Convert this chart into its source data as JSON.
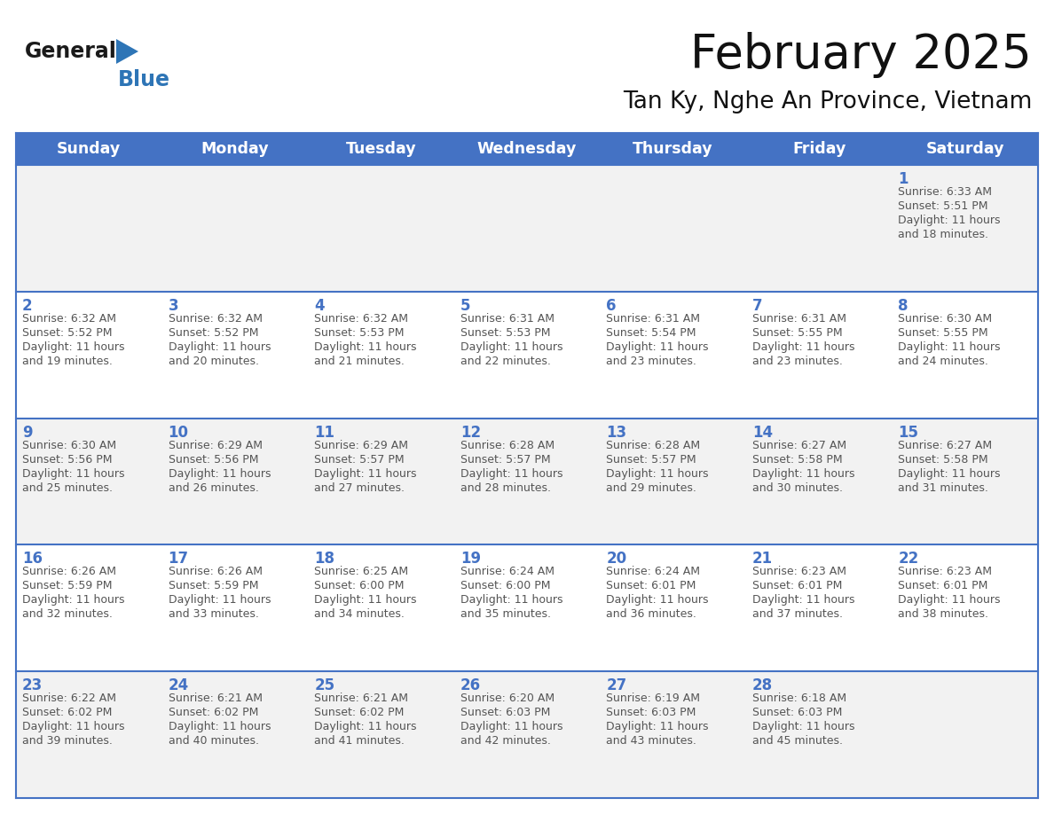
{
  "title": "February 2025",
  "subtitle": "Tan Ky, Nghe An Province, Vietnam",
  "header_bg_color": "#4472C4",
  "header_text_color": "#FFFFFF",
  "day_names": [
    "Sunday",
    "Monday",
    "Tuesday",
    "Wednesday",
    "Thursday",
    "Friday",
    "Saturday"
  ],
  "odd_row_bg": "#F2F2F2",
  "even_row_bg": "#FFFFFF",
  "cell_border_color": "#4472C4",
  "day_number_color": "#4472C4",
  "info_text_color": "#555555",
  "calendar_data": [
    [
      {
        "day": "",
        "info": ""
      },
      {
        "day": "",
        "info": ""
      },
      {
        "day": "",
        "info": ""
      },
      {
        "day": "",
        "info": ""
      },
      {
        "day": "",
        "info": ""
      },
      {
        "day": "",
        "info": ""
      },
      {
        "day": "1",
        "info": "Sunrise: 6:33 AM\nSunset: 5:51 PM\nDaylight: 11 hours\nand 18 minutes."
      }
    ],
    [
      {
        "day": "2",
        "info": "Sunrise: 6:32 AM\nSunset: 5:52 PM\nDaylight: 11 hours\nand 19 minutes."
      },
      {
        "day": "3",
        "info": "Sunrise: 6:32 AM\nSunset: 5:52 PM\nDaylight: 11 hours\nand 20 minutes."
      },
      {
        "day": "4",
        "info": "Sunrise: 6:32 AM\nSunset: 5:53 PM\nDaylight: 11 hours\nand 21 minutes."
      },
      {
        "day": "5",
        "info": "Sunrise: 6:31 AM\nSunset: 5:53 PM\nDaylight: 11 hours\nand 22 minutes."
      },
      {
        "day": "6",
        "info": "Sunrise: 6:31 AM\nSunset: 5:54 PM\nDaylight: 11 hours\nand 23 minutes."
      },
      {
        "day": "7",
        "info": "Sunrise: 6:31 AM\nSunset: 5:55 PM\nDaylight: 11 hours\nand 23 minutes."
      },
      {
        "day": "8",
        "info": "Sunrise: 6:30 AM\nSunset: 5:55 PM\nDaylight: 11 hours\nand 24 minutes."
      }
    ],
    [
      {
        "day": "9",
        "info": "Sunrise: 6:30 AM\nSunset: 5:56 PM\nDaylight: 11 hours\nand 25 minutes."
      },
      {
        "day": "10",
        "info": "Sunrise: 6:29 AM\nSunset: 5:56 PM\nDaylight: 11 hours\nand 26 minutes."
      },
      {
        "day": "11",
        "info": "Sunrise: 6:29 AM\nSunset: 5:57 PM\nDaylight: 11 hours\nand 27 minutes."
      },
      {
        "day": "12",
        "info": "Sunrise: 6:28 AM\nSunset: 5:57 PM\nDaylight: 11 hours\nand 28 minutes."
      },
      {
        "day": "13",
        "info": "Sunrise: 6:28 AM\nSunset: 5:57 PM\nDaylight: 11 hours\nand 29 minutes."
      },
      {
        "day": "14",
        "info": "Sunrise: 6:27 AM\nSunset: 5:58 PM\nDaylight: 11 hours\nand 30 minutes."
      },
      {
        "day": "15",
        "info": "Sunrise: 6:27 AM\nSunset: 5:58 PM\nDaylight: 11 hours\nand 31 minutes."
      }
    ],
    [
      {
        "day": "16",
        "info": "Sunrise: 6:26 AM\nSunset: 5:59 PM\nDaylight: 11 hours\nand 32 minutes."
      },
      {
        "day": "17",
        "info": "Sunrise: 6:26 AM\nSunset: 5:59 PM\nDaylight: 11 hours\nand 33 minutes."
      },
      {
        "day": "18",
        "info": "Sunrise: 6:25 AM\nSunset: 6:00 PM\nDaylight: 11 hours\nand 34 minutes."
      },
      {
        "day": "19",
        "info": "Sunrise: 6:24 AM\nSunset: 6:00 PM\nDaylight: 11 hours\nand 35 minutes."
      },
      {
        "day": "20",
        "info": "Sunrise: 6:24 AM\nSunset: 6:01 PM\nDaylight: 11 hours\nand 36 minutes."
      },
      {
        "day": "21",
        "info": "Sunrise: 6:23 AM\nSunset: 6:01 PM\nDaylight: 11 hours\nand 37 minutes."
      },
      {
        "day": "22",
        "info": "Sunrise: 6:23 AM\nSunset: 6:01 PM\nDaylight: 11 hours\nand 38 minutes."
      }
    ],
    [
      {
        "day": "23",
        "info": "Sunrise: 6:22 AM\nSunset: 6:02 PM\nDaylight: 11 hours\nand 39 minutes."
      },
      {
        "day": "24",
        "info": "Sunrise: 6:21 AM\nSunset: 6:02 PM\nDaylight: 11 hours\nand 40 minutes."
      },
      {
        "day": "25",
        "info": "Sunrise: 6:21 AM\nSunset: 6:02 PM\nDaylight: 11 hours\nand 41 minutes."
      },
      {
        "day": "26",
        "info": "Sunrise: 6:20 AM\nSunset: 6:03 PM\nDaylight: 11 hours\nand 42 minutes."
      },
      {
        "day": "27",
        "info": "Sunrise: 6:19 AM\nSunset: 6:03 PM\nDaylight: 11 hours\nand 43 minutes."
      },
      {
        "day": "28",
        "info": "Sunrise: 6:18 AM\nSunset: 6:03 PM\nDaylight: 11 hours\nand 45 minutes."
      },
      {
        "day": "",
        "info": ""
      }
    ]
  ],
  "logo_general_color": "#1a1a1a",
  "logo_blue_color": "#2E75B6",
  "logo_triangle_color": "#2E75B6",
  "fig_width": 11.88,
  "fig_height": 9.18,
  "dpi": 100
}
